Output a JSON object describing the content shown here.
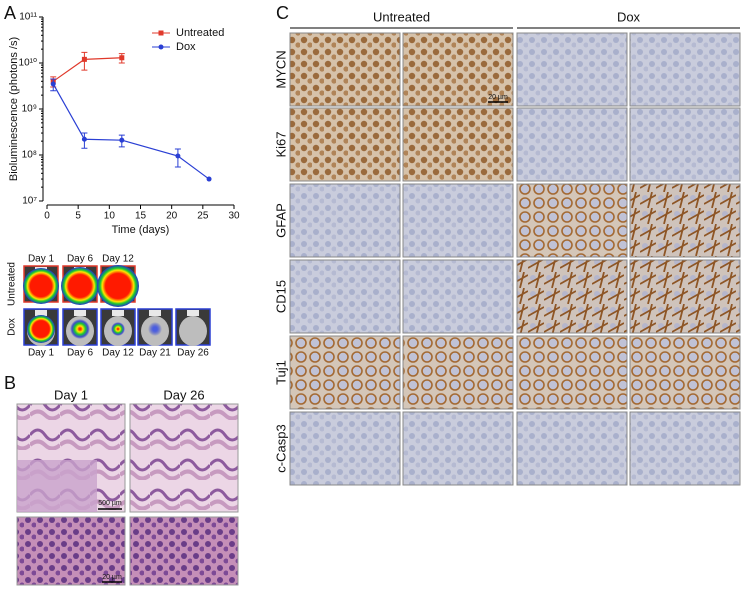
{
  "chart_data": {
    "type": "line",
    "x_label": "Time (days)",
    "y_label": "Bioluminescence (photons /s)",
    "xlim": [
      0,
      30
    ],
    "xticks": [
      0,
      5,
      10,
      15,
      20,
      25,
      30
    ],
    "ylim": [
      10000000,
      100000000000
    ],
    "yscale": "log",
    "yticks": [
      {
        "value": 10000000,
        "label": "10⁷"
      },
      {
        "value": 100000000,
        "label": "10⁸"
      },
      {
        "value": 1000000000,
        "label": "10⁹"
      },
      {
        "value": 10000000000,
        "label": "10¹⁰"
      },
      {
        "value": 100000000000,
        "label": "10¹¹"
      }
    ],
    "legend": "top-right",
    "series": [
      {
        "name": "Untreated",
        "color": "#e0392b",
        "marker": "square",
        "x": [
          1,
          6,
          12
        ],
        "values": [
          4000000000,
          12000000000,
          13000000000
        ],
        "errors": [
          1000000000,
          5000000000,
          3000000000
        ]
      },
      {
        "name": "Dox",
        "color": "#2a3fd4",
        "marker": "circle",
        "x": [
          1,
          6,
          12,
          21,
          26
        ],
        "values": [
          3500000000,
          220000000,
          210000000,
          95000000,
          30000000
        ],
        "errors": [
          1000000000,
          80000000,
          60000000,
          40000000,
          0
        ]
      }
    ]
  },
  "panel_labels": [
    "A",
    "B",
    "C"
  ],
  "imaging": {
    "untreated_label": "Untreated",
    "dox_label": "Dox",
    "untreated_days": [
      "Day 1",
      "Day 6",
      "Day 12"
    ],
    "dox_days": [
      "Day 1",
      "Day 6",
      "Day 12",
      "Day 21",
      "Day 26"
    ]
  },
  "histology": {
    "days": [
      "Day 1",
      "Day 26"
    ],
    "scale_bars": [
      "500 µm",
      "20 µm"
    ]
  },
  "ihc": {
    "groups": [
      "Untreated",
      "Dox"
    ],
    "markers": [
      "MYCN",
      "Ki67",
      "GFAP",
      "CD15",
      "Tuj1",
      "c-Casp3"
    ],
    "scale_bar": "20 µm"
  }
}
